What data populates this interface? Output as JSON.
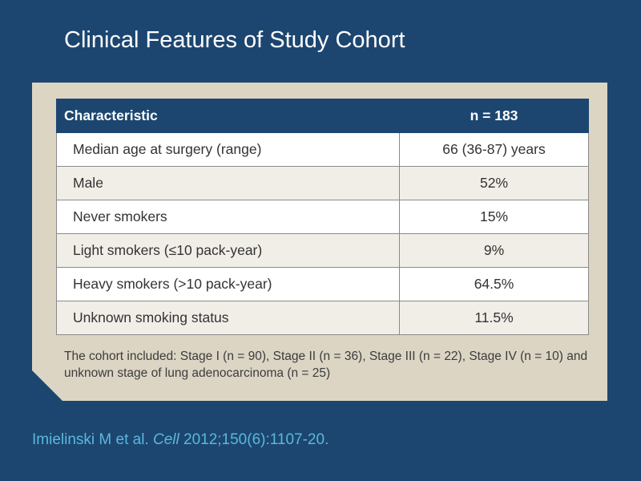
{
  "slide": {
    "title": "Clinical Features of Study Cohort"
  },
  "table": {
    "header": {
      "characteristic": "Characteristic",
      "n": "n = 183"
    },
    "rows": [
      {
        "characteristic": "Median age at surgery (range)",
        "value": "66 (36-87) years"
      },
      {
        "characteristic": "Male",
        "value": "52%"
      },
      {
        "characteristic": "Never smokers",
        "value": "15%"
      },
      {
        "characteristic": "Light smokers (≤10 pack-year)",
        "value": "9%"
      },
      {
        "characteristic": "Heavy smokers (>10 pack-year)",
        "value": "64.5%"
      },
      {
        "characteristic": "Unknown smoking status",
        "value": "11.5%"
      }
    ]
  },
  "note": "The cohort included: Stage I (n = 90), Stage II (n = 36), Stage III (n = 22), Stage IV (n = 10) and unknown stage of lung adenocarcinoma (n = 25)",
  "citation": {
    "authors": "Imielinski M et al.",
    "journal": "Cell",
    "details": "2012;150(6):1107-20."
  },
  "colors": {
    "background": "#1c4670",
    "panel": "#dcd5c4",
    "citation": "#5ab8dc"
  }
}
